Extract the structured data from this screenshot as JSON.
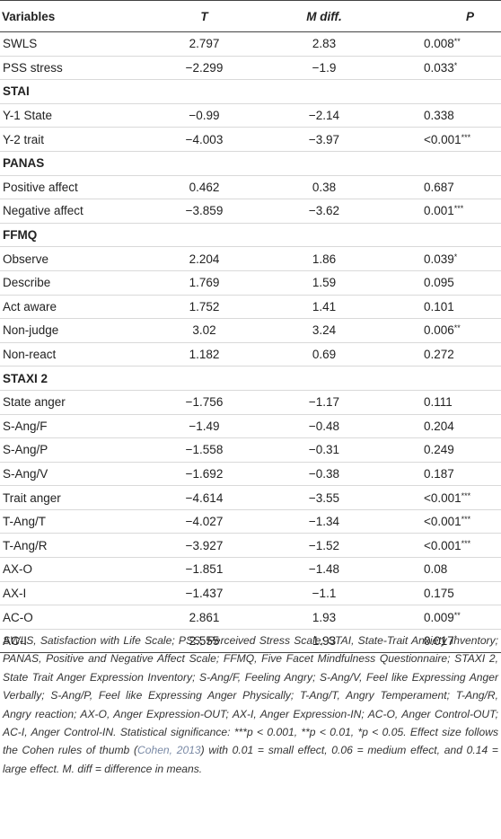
{
  "headers": {
    "variables": "Variables",
    "t": "T",
    "mdiff": "M diff.",
    "p": "P"
  },
  "rows": [
    {
      "type": "data",
      "label": "SWLS",
      "t": "2.797",
      "m": "2.83",
      "p": "0.008",
      "sig": "**"
    },
    {
      "type": "data",
      "label": "PSS stress",
      "t": "−2.299",
      "m": "−1.9",
      "p": "0.033",
      "sig": "*"
    },
    {
      "type": "section",
      "label": "STAI"
    },
    {
      "type": "data",
      "label": "Y-1 State",
      "t": "−0.99",
      "m": "−2.14",
      "p": "0.338",
      "sig": ""
    },
    {
      "type": "data",
      "label": "Y-2 trait",
      "t": "−4.003",
      "m": "−3.97",
      "p": "<0.001",
      "sig": "***"
    },
    {
      "type": "section",
      "label": "PANAS"
    },
    {
      "type": "data",
      "label": "Positive affect",
      "t": "0.462",
      "m": "0.38",
      "p": "0.687",
      "sig": ""
    },
    {
      "type": "data",
      "label": "Negative affect",
      "t": "−3.859",
      "m": "−3.62",
      "p": "0.001",
      "sig": "***"
    },
    {
      "type": "section",
      "label": "FFMQ"
    },
    {
      "type": "data",
      "label": "Observe",
      "t": "2.204",
      "m": "1.86",
      "p": "0.039",
      "sig": "*"
    },
    {
      "type": "data",
      "label": "Describe",
      "t": "1.769",
      "m": "1.59",
      "p": "0.095",
      "sig": ""
    },
    {
      "type": "data",
      "label": "Act aware",
      "t": "1.752",
      "m": "1.41",
      "p": "0.101",
      "sig": ""
    },
    {
      "type": "data",
      "label": "Non-judge",
      "t": "3.02",
      "m": "3.24",
      "p": "0.006",
      "sig": "**"
    },
    {
      "type": "data",
      "label": "Non-react",
      "t": "1.182",
      "m": "0.69",
      "p": "0.272",
      "sig": ""
    },
    {
      "type": "section",
      "label": "STAXI 2"
    },
    {
      "type": "data",
      "label": "State anger",
      "t": "−1.756",
      "m": "−1.17",
      "p": "0.111",
      "sig": ""
    },
    {
      "type": "data",
      "label": "S-Ang/F",
      "t": "−1.49",
      "m": "−0.48",
      "p": "0.204",
      "sig": ""
    },
    {
      "type": "data",
      "label": "S-Ang/P",
      "t": "−1.558",
      "m": "−0.31",
      "p": "0.249",
      "sig": ""
    },
    {
      "type": "data",
      "label": "S-Ang/V",
      "t": "−1.692",
      "m": "−0.38",
      "p": "0.187",
      "sig": ""
    },
    {
      "type": "data",
      "label": "Trait anger",
      "t": "−4.614",
      "m": "−3.55",
      "p": "<0.001",
      "sig": "***"
    },
    {
      "type": "data",
      "label": "T-Ang/T",
      "t": "−4.027",
      "m": "−1.34",
      "p": "<0.001",
      "sig": "***"
    },
    {
      "type": "data",
      "label": "T-Ang/R",
      "t": "−3.927",
      "m": "−1.52",
      "p": "<0.001",
      "sig": "***"
    },
    {
      "type": "data",
      "label": "AX-O",
      "t": "−1.851",
      "m": "−1.48",
      "p": "0.08",
      "sig": ""
    },
    {
      "type": "data",
      "label": "AX-I",
      "t": "−1.437",
      "m": "−1.1",
      "p": "0.175",
      "sig": ""
    },
    {
      "type": "data",
      "label": "AC-O",
      "t": "2.861",
      "m": "1.93",
      "p": "0.009",
      "sig": "**"
    },
    {
      "type": "data",
      "label": "AC-I",
      "t": "2.555",
      "m": "1.93",
      "p": "0.017",
      "sig": "*"
    }
  ],
  "footnote": {
    "before": "SWLS, Satisfaction with Life Scale; PSS, Perceived Stress Scale; STAI, State-Trait Anxiety Inventory; PANAS, Positive and Negative Affect Scale; FFMQ, Five Facet Mindfulness Questionnaire; STAXI 2, State Trait Anger Expression Inventory; S-Ang/F, Feeling Angry; S-Ang/V, Feel like Expressing Anger Verbally; S-Ang/P, Feel like Expressing Anger Physically; T-Ang/T, Angry Temperament; T-Ang/R, Angry reaction; AX-O, Anger Expression-OUT; AX-I, Anger Expression-IN; AC-O, Anger Control-OUT; AC-I, Anger Control-IN. Statistical significance: ***p < 0.001, **p < 0.01, *p < 0.05. Effect size follows the Cohen rules of thumb (",
    "citation": "Cohen, 2013",
    "after": ") with 0.01 = small effect, 0.06 = medium effect, and 0.14 = large effect. M. diff = difference in means."
  }
}
